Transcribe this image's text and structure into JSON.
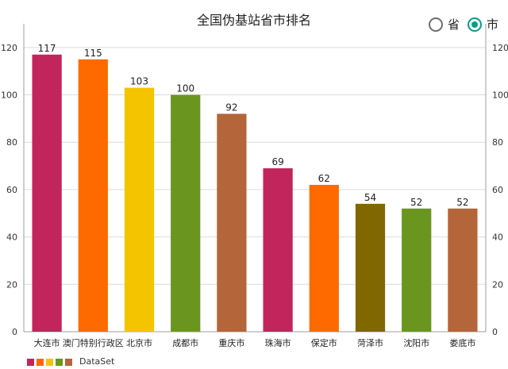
{
  "chart_data": {
    "type": "bar",
    "title": "全国伪基站省市排名",
    "categories": [
      "大连市",
      "澳门特别行政区",
      "北京市",
      "成都市",
      "重庆市",
      "珠海市",
      "保定市",
      "菏泽市",
      "沈阳市",
      "娄底市"
    ],
    "series": [
      {
        "name": "DataSet",
        "values": [
          117,
          115,
          103,
          100,
          92,
          69,
          62,
          54,
          52,
          52
        ]
      }
    ],
    "colors": [
      "#c2255c",
      "#ff6a00",
      "#f5c400",
      "#6a961f",
      "#b5653a",
      "#c2255c",
      "#ff6a00",
      "#806700",
      "#6a961f",
      "#b5653a"
    ],
    "ylim": [
      0,
      130
    ],
    "yticks": [
      0,
      20,
      40,
      60,
      80,
      100,
      120
    ],
    "grid": true,
    "data_labels": true,
    "dual_y_axis": true,
    "legend_position": "bottom-left",
    "legend_colors": [
      "#c2255c",
      "#ff6a00",
      "#f5c400",
      "#6a961f",
      "#b5653a"
    ]
  },
  "controls": {
    "options": [
      {
        "label": "省",
        "checked": false
      },
      {
        "label": "市",
        "checked": true
      }
    ]
  }
}
